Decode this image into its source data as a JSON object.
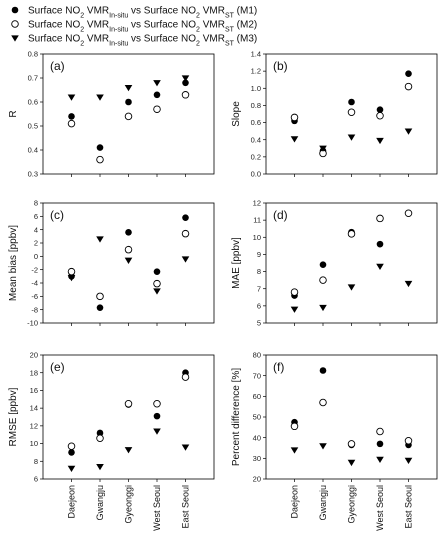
{
  "legend": [
    {
      "series": "M1",
      "prefix": "Surface NO",
      "sub1": "2",
      "mid1": " VMR",
      "sub2": "In-situ",
      "mid2": " vs Surface NO",
      "sub3": "2",
      "mid3": " VMR",
      "sub4": "ST",
      "suffix": " (M1)",
      "marker": "filled-circle"
    },
    {
      "series": "M2",
      "prefix": "Surface NO",
      "sub1": "2",
      "mid1": " VMR",
      "sub2": "In-situ",
      "mid2": " vs Surface NO",
      "sub3": "2",
      "mid3": " VMR",
      "sub4": "ST",
      "suffix": " (M2)",
      "marker": "open-circle"
    },
    {
      "series": "M3",
      "prefix": "Surface NO",
      "sub1": "2",
      "mid1": " VMR",
      "sub2": "In-situ",
      "mid2": " vs Surface NO",
      "sub3": "2",
      "mid3": " VMR",
      "sub4": "ST",
      "suffix": " (M3)",
      "marker": "filled-triangle-down"
    }
  ],
  "categories": [
    "Daejeon",
    "Gwangju",
    "Gyeonggi",
    "West Seoul",
    "East Seoul"
  ],
  "chart_data": [
    {
      "type": "scatter",
      "panel": "(a)",
      "ylabel": "R",
      "ylim": [
        0.3,
        0.8
      ],
      "yticks": [
        "0.3",
        "0.4",
        "0.5",
        "0.6",
        "0.7",
        "0.8"
      ],
      "show_x_labels": false,
      "series": [
        {
          "name": "M1",
          "values": [
            0.54,
            0.41,
            0.6,
            0.63,
            0.68
          ]
        },
        {
          "name": "M2",
          "values": [
            0.51,
            0.36,
            0.54,
            0.57,
            0.63
          ]
        },
        {
          "name": "M3",
          "values": [
            0.62,
            0.62,
            0.66,
            0.68,
            0.7
          ]
        }
      ]
    },
    {
      "type": "scatter",
      "panel": "(b)",
      "ylabel": "Slope",
      "ylim": [
        0.0,
        1.4
      ],
      "yticks": [
        "0.0",
        "0.2",
        "0.4",
        "0.6",
        "0.8",
        "1.0",
        "1.2",
        "1.4"
      ],
      "show_x_labels": false,
      "series": [
        {
          "name": "M1",
          "values": [
            0.62,
            0.27,
            0.84,
            0.75,
            1.17
          ]
        },
        {
          "name": "M2",
          "values": [
            0.66,
            0.24,
            0.72,
            0.68,
            1.02
          ]
        },
        {
          "name": "M3",
          "values": [
            0.41,
            0.3,
            0.43,
            0.39,
            0.5
          ]
        }
      ]
    },
    {
      "type": "scatter",
      "panel": "(c)",
      "ylabel": "Mean bias [ppbv]",
      "ylim": [
        -10,
        8
      ],
      "yticks": [
        "-10",
        "-8",
        "-6",
        "-4",
        "-2",
        "0",
        "2",
        "4",
        "6",
        "8"
      ],
      "show_x_labels": false,
      "series": [
        {
          "name": "M1",
          "values": [
            -3.0,
            -7.7,
            3.6,
            -2.3,
            5.8
          ]
        },
        {
          "name": "M2",
          "values": [
            -2.3,
            -6.0,
            1.0,
            -4.1,
            3.4
          ]
        },
        {
          "name": "M3",
          "values": [
            -3.2,
            2.6,
            -0.6,
            -5.2,
            -0.4
          ]
        }
      ]
    },
    {
      "type": "scatter",
      "panel": "(d)",
      "ylabel": "MAE [ppbv]",
      "ylim": [
        5,
        12
      ],
      "yticks": [
        "5",
        "6",
        "7",
        "8",
        "9",
        "10",
        "11",
        "12"
      ],
      "show_x_labels": false,
      "series": [
        {
          "name": "M1",
          "values": [
            6.6,
            8.4,
            10.3,
            9.6,
            11.4
          ]
        },
        {
          "name": "M2",
          "values": [
            6.8,
            7.5,
            10.2,
            11.1,
            11.4
          ]
        },
        {
          "name": "M3",
          "values": [
            5.8,
            5.9,
            7.1,
            8.3,
            7.3
          ]
        }
      ]
    },
    {
      "type": "scatter",
      "panel": "(e)",
      "ylabel": "RMSE [ppbv]",
      "ylim": [
        6,
        20
      ],
      "yticks": [
        "6",
        "8",
        "10",
        "12",
        "14",
        "16",
        "18",
        "20"
      ],
      "show_x_labels": true,
      "series": [
        {
          "name": "M1",
          "values": [
            9.0,
            11.2,
            14.4,
            13.1,
            18.0
          ]
        },
        {
          "name": "M2",
          "values": [
            9.7,
            10.6,
            14.5,
            14.5,
            17.5
          ]
        },
        {
          "name": "M3",
          "values": [
            7.2,
            7.4,
            9.3,
            11.4,
            9.6
          ]
        }
      ]
    },
    {
      "type": "scatter",
      "panel": "(f)",
      "ylabel": "Percent difference [%]",
      "ylim": [
        20,
        80
      ],
      "yticks": [
        "20",
        "30",
        "40",
        "50",
        "60",
        "70",
        "80"
      ],
      "show_x_labels": true,
      "series": [
        {
          "name": "M1",
          "values": [
            47.5,
            72.5,
            36.5,
            37.0,
            36.5
          ]
        },
        {
          "name": "M2",
          "values": [
            45.5,
            57.0,
            37.0,
            43.0,
            38.5
          ]
        },
        {
          "name": "M3",
          "values": [
            34.0,
            36.0,
            28.0,
            29.5,
            29.0
          ]
        }
      ]
    }
  ]
}
